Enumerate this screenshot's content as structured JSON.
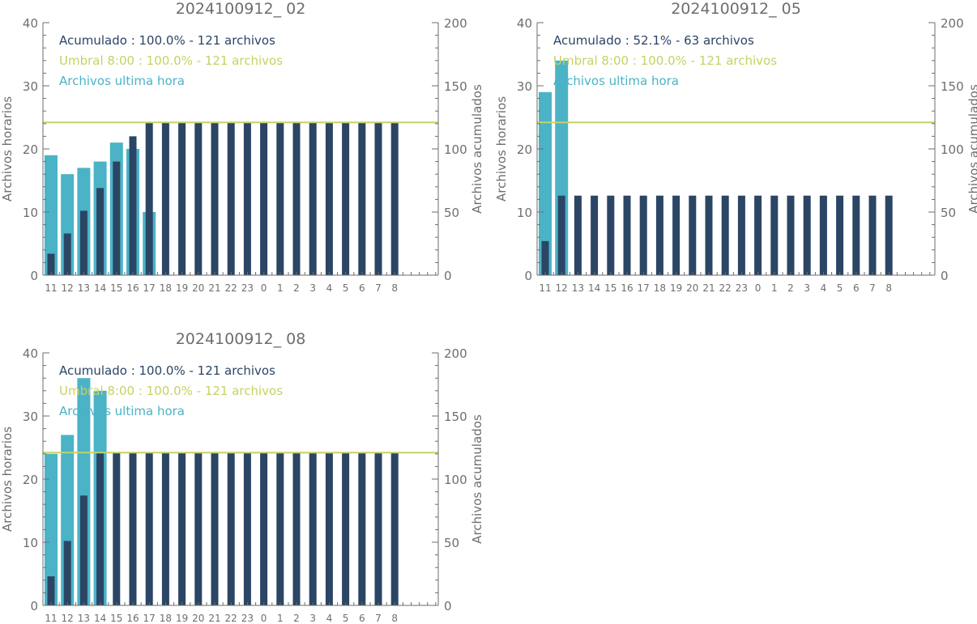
{
  "colors": {
    "hourly": "#4bb3c6",
    "cumulative": "#2b4565",
    "threshold": "#c7d163",
    "axis": "#6e6e6e"
  },
  "chart_data": [
    {
      "type": "bar",
      "title": "2024100912_ 02",
      "ylabel_left": "Archivos horarios",
      "ylabel_right": "Archivos acumulados",
      "ylim_left": [
        0,
        40
      ],
      "ylim_right": [
        0,
        200
      ],
      "yticks_left": [
        "0",
        "10",
        "20",
        "30",
        "40"
      ],
      "yticks_right": [
        "0",
        "50",
        "100",
        "150",
        "200"
      ],
      "categories": [
        "11",
        "12",
        "13",
        "14",
        "15",
        "16",
        "17",
        "18",
        "19",
        "20",
        "21",
        "22",
        "23",
        "0",
        "1",
        "2",
        "3",
        "4",
        "5",
        "6",
        "7",
        "8"
      ],
      "threshold": 121,
      "legend": [
        "Acumulado : 100.0% - 121 archivos",
        "Umbral 8:00 : 100.0% - 121 archivos",
        "Archivos ultima hora"
      ],
      "series": [
        {
          "name": "Archivos ultima hora",
          "axis": "left",
          "values": [
            19,
            16,
            17,
            18,
            21,
            20,
            10,
            0,
            0,
            0,
            0,
            0,
            0,
            0,
            0,
            0,
            0,
            0,
            0,
            0,
            0,
            0
          ]
        },
        {
          "name": "Acumulado",
          "axis": "right",
          "values": [
            17,
            33,
            51,
            69,
            90,
            110,
            121,
            121,
            121,
            121,
            121,
            121,
            121,
            121,
            121,
            121,
            121,
            121,
            121,
            121,
            121,
            121
          ]
        }
      ]
    },
    {
      "type": "bar",
      "title": "2024100912_ 05",
      "ylabel_left": "Archivos horarios",
      "ylabel_right": "Archivos acumulados",
      "ylim_left": [
        0,
        40
      ],
      "ylim_right": [
        0,
        200
      ],
      "yticks_left": [
        "0",
        "10",
        "20",
        "30",
        "40"
      ],
      "yticks_right": [
        "0",
        "50",
        "100",
        "150",
        "200"
      ],
      "categories": [
        "11",
        "12",
        "13",
        "14",
        "15",
        "16",
        "17",
        "18",
        "19",
        "20",
        "21",
        "22",
        "23",
        "0",
        "1",
        "2",
        "3",
        "4",
        "5",
        "6",
        "7",
        "8"
      ],
      "threshold": 121,
      "legend": [
        "Acumulado : 52.1% - 63 archivos",
        "Umbral 8:00 : 100.0% - 121 archivos",
        "Archivos ultima hora"
      ],
      "series": [
        {
          "name": "Archivos ultima hora",
          "axis": "left",
          "values": [
            29,
            34,
            0,
            0,
            0,
            0,
            0,
            0,
            0,
            0,
            0,
            0,
            0,
            0,
            0,
            0,
            0,
            0,
            0,
            0,
            0,
            0
          ]
        },
        {
          "name": "Acumulado",
          "axis": "right",
          "values": [
            27,
            63,
            63,
            63,
            63,
            63,
            63,
            63,
            63,
            63,
            63,
            63,
            63,
            63,
            63,
            63,
            63,
            63,
            63,
            63,
            63,
            63
          ]
        }
      ]
    },
    {
      "type": "bar",
      "title": "2024100912_ 08",
      "ylabel_left": "Archivos horarios",
      "ylabel_right": "Archivos acumulados",
      "ylim_left": [
        0,
        40
      ],
      "ylim_right": [
        0,
        200
      ],
      "yticks_left": [
        "0",
        "10",
        "20",
        "30",
        "40"
      ],
      "yticks_right": [
        "0",
        "50",
        "100",
        "150",
        "200"
      ],
      "categories": [
        "11",
        "12",
        "13",
        "14",
        "15",
        "16",
        "17",
        "18",
        "19",
        "20",
        "21",
        "22",
        "23",
        "0",
        "1",
        "2",
        "3",
        "4",
        "5",
        "6",
        "7",
        "8"
      ],
      "threshold": 121,
      "legend": [
        "Acumulado : 100.0% - 121 archivos",
        "Umbral 8:00 : 100.0% - 121 archivos",
        "Archivos ultima hora"
      ],
      "series": [
        {
          "name": "Archivos ultima hora",
          "axis": "left",
          "values": [
            24,
            27,
            36,
            34,
            0,
            0,
            0,
            0,
            0,
            0,
            0,
            0,
            0,
            0,
            0,
            0,
            0,
            0,
            0,
            0,
            0,
            0
          ]
        },
        {
          "name": "Acumulado",
          "axis": "right",
          "values": [
            23,
            51,
            87,
            121,
            121,
            121,
            121,
            121,
            121,
            121,
            121,
            121,
            121,
            121,
            121,
            121,
            121,
            121,
            121,
            121,
            121,
            121
          ]
        }
      ]
    }
  ]
}
